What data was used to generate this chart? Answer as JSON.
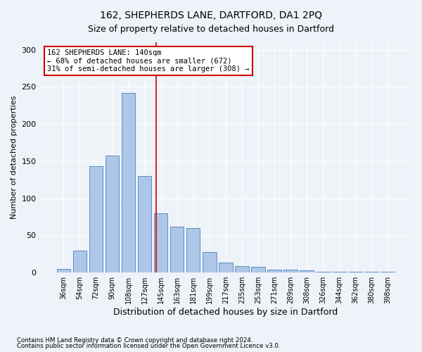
{
  "title1": "162, SHEPHERDS LANE, DARTFORD, DA1 2PQ",
  "title2": "Size of property relative to detached houses in Dartford",
  "xlabel": "Distribution of detached houses by size in Dartford",
  "ylabel": "Number of detached properties",
  "categories": [
    "36sqm",
    "54sqm",
    "72sqm",
    "90sqm",
    "108sqm",
    "127sqm",
    "145sqm",
    "163sqm",
    "181sqm",
    "199sqm",
    "217sqm",
    "235sqm",
    "253sqm",
    "271sqm",
    "289sqm",
    "308sqm",
    "326sqm",
    "344sqm",
    "362sqm",
    "380sqm",
    "398sqm"
  ],
  "values": [
    5,
    30,
    143,
    157,
    242,
    130,
    80,
    62,
    60,
    28,
    13,
    9,
    8,
    4,
    4,
    3,
    1,
    1,
    1,
    1,
    1
  ],
  "bar_color": "#aec6e8",
  "bar_edge_color": "#5a8fc2",
  "ref_line_color": "#cc0000",
  "ref_line_x": 5.72,
  "annotation_text": "162 SHEPHERDS LANE: 140sqm\n← 68% of detached houses are smaller (672)\n31% of semi-detached houses are larger (308) →",
  "annotation_box_color": "#ffffff",
  "annotation_box_edge_color": "#cc0000",
  "footnote1": "Contains HM Land Registry data © Crown copyright and database right 2024.",
  "footnote2": "Contains public sector information licensed under the Open Government Licence v3.0.",
  "background_color": "#eef2f9",
  "ylim": [
    0,
    310
  ],
  "yticks": [
    0,
    50,
    100,
    150,
    200,
    250,
    300
  ]
}
